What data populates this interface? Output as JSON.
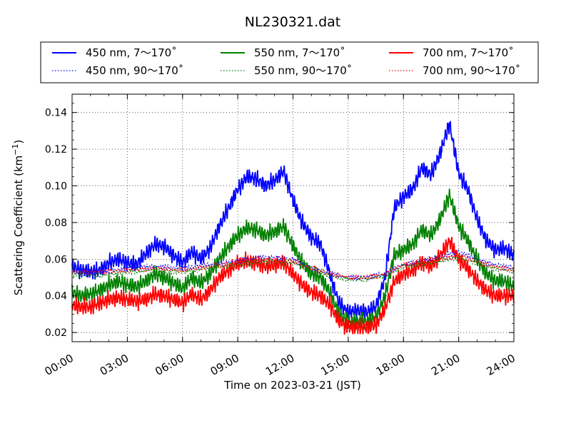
{
  "chart_data": {
    "type": "line",
    "title": "NL230321.dat",
    "xlabel": "Time on 2023-03-21 (JST)",
    "ylabel": "Scattering Coefficient (km",
    "ylabel_sup": "−1",
    "ylabel_close": ")",
    "xlim": [
      "00:00",
      "24:00"
    ],
    "ylim": [
      0.015,
      0.15
    ],
    "x_ticks": [
      "00:00",
      "03:00",
      "06:00",
      "09:00",
      "12:00",
      "15:00",
      "18:00",
      "21:00",
      "24:00"
    ],
    "y_ticks": [
      "0.02",
      "0.04",
      "0.06",
      "0.08",
      "0.10",
      "0.12",
      "0.14"
    ],
    "grid": true,
    "legend_position": "top",
    "series": [
      {
        "name": "450 nm, 7～170˚",
        "color": "#0000ff",
        "style": "solid",
        "x": [
          "00:00",
          "00:30",
          "01:00",
          "01:30",
          "02:00",
          "02:30",
          "03:00",
          "03:30",
          "04:00",
          "04:30",
          "05:00",
          "05:30",
          "06:00",
          "06:30",
          "07:00",
          "07:30",
          "08:00",
          "08:30",
          "09:00",
          "09:30",
          "10:00",
          "10:30",
          "11:00",
          "11:30",
          "12:00",
          "12:30",
          "13:00",
          "13:30",
          "14:00",
          "14:30",
          "15:00",
          "15:30",
          "16:00",
          "16:30",
          "17:00",
          "17:30",
          "18:00",
          "18:30",
          "19:00",
          "19:30",
          "20:00",
          "20:30",
          "21:00",
          "21:30",
          "22:00",
          "22:30",
          "23:00",
          "23:30",
          "24:00"
        ],
        "values": [
          0.056,
          0.054,
          0.053,
          0.054,
          0.058,
          0.06,
          0.058,
          0.057,
          0.063,
          0.068,
          0.067,
          0.062,
          0.058,
          0.064,
          0.06,
          0.066,
          0.078,
          0.088,
          0.098,
          0.105,
          0.104,
          0.1,
          0.103,
          0.108,
          0.092,
          0.08,
          0.072,
          0.068,
          0.052,
          0.036,
          0.031,
          0.032,
          0.031,
          0.034,
          0.05,
          0.088,
          0.094,
          0.098,
          0.11,
          0.106,
          0.118,
          0.134,
          0.107,
          0.098,
          0.082,
          0.07,
          0.065,
          0.066,
          0.062
        ]
      },
      {
        "name": "550 nm, 7～170˚",
        "color": "#008000",
        "style": "solid",
        "x": [
          "00:00",
          "00:30",
          "01:00",
          "01:30",
          "02:00",
          "02:30",
          "03:00",
          "03:30",
          "04:00",
          "04:30",
          "05:00",
          "05:30",
          "06:00",
          "06:30",
          "07:00",
          "07:30",
          "08:00",
          "08:30",
          "09:00",
          "09:30",
          "10:00",
          "10:30",
          "11:00",
          "11:30",
          "12:00",
          "12:30",
          "13:00",
          "13:30",
          "14:00",
          "14:30",
          "15:00",
          "15:30",
          "16:00",
          "16:30",
          "17:00",
          "17:30",
          "18:00",
          "18:30",
          "19:00",
          "19:30",
          "20:00",
          "20:30",
          "21:00",
          "21:30",
          "22:00",
          "22:30",
          "23:00",
          "23:30",
          "24:00"
        ],
        "values": [
          0.042,
          0.04,
          0.041,
          0.043,
          0.046,
          0.048,
          0.046,
          0.045,
          0.048,
          0.052,
          0.05,
          0.047,
          0.044,
          0.05,
          0.047,
          0.052,
          0.06,
          0.067,
          0.073,
          0.077,
          0.076,
          0.073,
          0.075,
          0.078,
          0.067,
          0.058,
          0.052,
          0.05,
          0.042,
          0.03,
          0.026,
          0.026,
          0.026,
          0.028,
          0.04,
          0.062,
          0.065,
          0.068,
          0.076,
          0.073,
          0.082,
          0.095,
          0.078,
          0.07,
          0.06,
          0.052,
          0.048,
          0.048,
          0.045
        ]
      },
      {
        "name": "700 nm, 7～170˚",
        "color": "#ff0000",
        "style": "solid",
        "x": [
          "00:00",
          "00:30",
          "01:00",
          "01:30",
          "02:00",
          "02:30",
          "03:00",
          "03:30",
          "04:00",
          "04:30",
          "05:00",
          "05:30",
          "06:00",
          "06:30",
          "07:00",
          "07:30",
          "08:00",
          "08:30",
          "09:00",
          "09:30",
          "10:00",
          "10:30",
          "11:00",
          "11:30",
          "12:00",
          "12:30",
          "13:00",
          "13:30",
          "14:00",
          "14:30",
          "15:00",
          "15:30",
          "16:00",
          "16:30",
          "17:00",
          "17:30",
          "18:00",
          "18:30",
          "19:00",
          "19:30",
          "20:00",
          "20:30",
          "21:00",
          "21:30",
          "22:00",
          "22:30",
          "23:00",
          "23:30",
          "24:00"
        ],
        "values": [
          0.035,
          0.034,
          0.034,
          0.036,
          0.038,
          0.039,
          0.038,
          0.037,
          0.038,
          0.041,
          0.04,
          0.038,
          0.036,
          0.041,
          0.038,
          0.043,
          0.05,
          0.054,
          0.058,
          0.059,
          0.058,
          0.056,
          0.057,
          0.058,
          0.052,
          0.046,
          0.042,
          0.04,
          0.035,
          0.026,
          0.023,
          0.023,
          0.023,
          0.024,
          0.033,
          0.048,
          0.052,
          0.054,
          0.058,
          0.056,
          0.062,
          0.07,
          0.06,
          0.055,
          0.048,
          0.043,
          0.04,
          0.04,
          0.04
        ]
      },
      {
        "name": "450 nm, 90～170˚",
        "color": "#0000ff",
        "style": "dotted",
        "x": [
          "00:00",
          "01:30",
          "03:00",
          "04:30",
          "06:00",
          "07:30",
          "09:00",
          "10:30",
          "12:00",
          "13:00",
          "14:00",
          "15:00",
          "16:00",
          "17:00",
          "18:00",
          "19:30",
          "21:00",
          "22:30",
          "24:00"
        ],
        "values": [
          0.054,
          0.053,
          0.055,
          0.056,
          0.055,
          0.057,
          0.059,
          0.061,
          0.06,
          0.055,
          0.052,
          0.05,
          0.05,
          0.052,
          0.057,
          0.06,
          0.064,
          0.058,
          0.055
        ]
      },
      {
        "name": "550 nm, 90～170˚",
        "color": "#008000",
        "style": "dotted",
        "x": [
          "00:00",
          "01:30",
          "03:00",
          "04:30",
          "06:00",
          "07:30",
          "09:00",
          "10:30",
          "12:00",
          "13:00",
          "14:00",
          "15:00",
          "16:00",
          "17:00",
          "18:00",
          "19:30",
          "21:00",
          "22:30",
          "24:00"
        ],
        "values": [
          0.052,
          0.051,
          0.053,
          0.054,
          0.053,
          0.055,
          0.057,
          0.059,
          0.058,
          0.054,
          0.051,
          0.049,
          0.049,
          0.051,
          0.056,
          0.058,
          0.061,
          0.056,
          0.053
        ]
      },
      {
        "name": "700 nm, 90～170˚",
        "color": "#ff0000",
        "style": "dotted",
        "x": [
          "00:00",
          "01:30",
          "03:00",
          "04:30",
          "06:00",
          "07:30",
          "09:00",
          "10:30",
          "12:00",
          "13:00",
          "14:00",
          "15:00",
          "16:00",
          "17:00",
          "18:00",
          "19:30",
          "21:00",
          "22:30",
          "24:00"
        ],
        "values": [
          0.053,
          0.053,
          0.054,
          0.055,
          0.054,
          0.056,
          0.058,
          0.06,
          0.059,
          0.055,
          0.052,
          0.05,
          0.05,
          0.052,
          0.057,
          0.059,
          0.062,
          0.057,
          0.054
        ]
      }
    ]
  }
}
